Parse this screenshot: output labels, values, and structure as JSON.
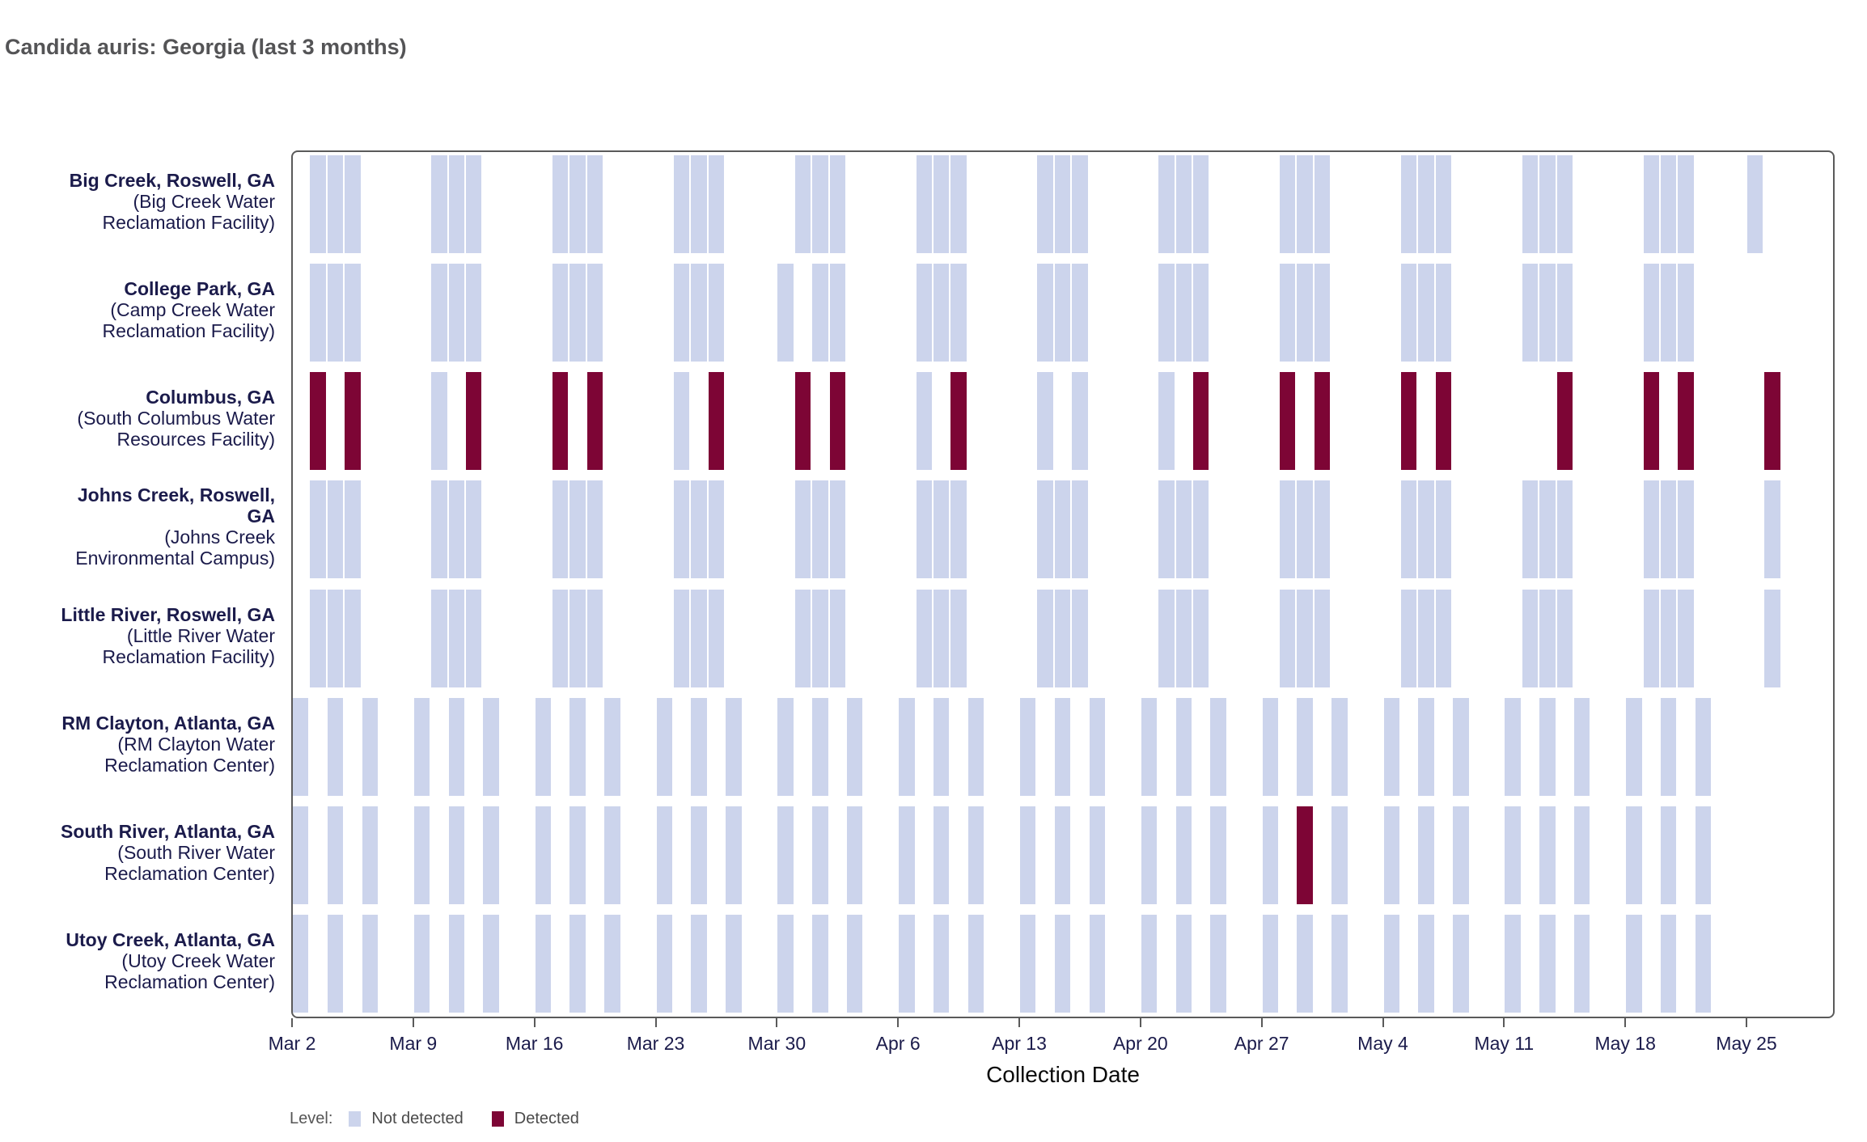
{
  "title": "Candida auris: Georgia (last 3 months)",
  "legend": {
    "label": "Level:",
    "items": [
      {
        "name": "Not detected",
        "color": "#ccd4ec"
      },
      {
        "name": "Detected",
        "color": "#7d0535"
      }
    ]
  },
  "colors": {
    "not_detected": "#ccd4ec",
    "detected": "#7d0535",
    "axis": "#5a5a5a",
    "label_navy": "#1b1b4b",
    "title_gray": "#545456"
  },
  "chart_data": {
    "type": "heatmap",
    "subtype": "detection-status-timeline",
    "xlabel": "Collection Date",
    "x_start_date": "Mar 2",
    "x_end_date": "May 26",
    "x_ticks": [
      {
        "day": 0,
        "label": "Mar 2"
      },
      {
        "day": 7,
        "label": "Mar 9"
      },
      {
        "day": 14,
        "label": "Mar 16"
      },
      {
        "day": 21,
        "label": "Mar 23"
      },
      {
        "day": 28,
        "label": "Mar 30"
      },
      {
        "day": 35,
        "label": "Apr 6"
      },
      {
        "day": 42,
        "label": "Apr 13"
      },
      {
        "day": 49,
        "label": "Apr 20"
      },
      {
        "day": 56,
        "label": "Apr 27"
      },
      {
        "day": 63,
        "label": "May 4"
      },
      {
        "day": 70,
        "label": "May 11"
      },
      {
        "day": 77,
        "label": "May 18"
      },
      {
        "day": 84,
        "label": "May 25"
      }
    ],
    "legend_position": "bottom-left",
    "grid": false,
    "rows": [
      {
        "city_lines": [
          "Big Creek, Roswell, GA"
        ],
        "facility_lines": [
          "(Big Creek Water",
          "Reclamation Facility)"
        ],
        "not_detected_days": [
          1,
          2,
          3,
          8,
          9,
          10,
          15,
          16,
          17,
          22,
          23,
          24,
          29,
          30,
          31,
          36,
          37,
          38,
          43,
          44,
          45,
          50,
          51,
          52,
          57,
          58,
          59,
          64,
          65,
          66,
          71,
          72,
          73,
          78,
          79,
          80,
          84
        ],
        "detected_days": []
      },
      {
        "city_lines": [
          "College Park, GA"
        ],
        "facility_lines": [
          "(Camp Creek Water",
          "Reclamation Facility)"
        ],
        "not_detected_days": [
          1,
          2,
          3,
          8,
          9,
          10,
          15,
          16,
          17,
          22,
          23,
          24,
          28,
          30,
          31,
          36,
          37,
          38,
          43,
          44,
          45,
          50,
          51,
          52,
          57,
          58,
          59,
          64,
          65,
          66,
          71,
          72,
          73,
          78,
          79,
          80
        ],
        "detected_days": []
      },
      {
        "city_lines": [
          "Columbus, GA"
        ],
        "facility_lines": [
          "(South Columbus Water",
          "Resources Facility)"
        ],
        "not_detected_days": [
          8,
          22,
          36,
          43,
          45,
          50
        ],
        "detected_days": [
          1,
          3,
          10,
          15,
          17,
          24,
          29,
          31,
          38,
          52,
          57,
          59,
          64,
          66,
          73,
          78,
          80,
          85
        ]
      },
      {
        "city_lines": [
          "Johns Creek, Roswell,",
          "GA"
        ],
        "facility_lines": [
          "(Johns Creek",
          "Environmental Campus)"
        ],
        "not_detected_days": [
          1,
          2,
          3,
          8,
          9,
          10,
          15,
          16,
          17,
          22,
          23,
          24,
          29,
          30,
          31,
          36,
          37,
          38,
          43,
          44,
          45,
          50,
          51,
          52,
          57,
          58,
          59,
          64,
          65,
          66,
          71,
          72,
          73,
          78,
          79,
          80,
          85
        ],
        "detected_days": []
      },
      {
        "city_lines": [
          "Little River, Roswell, GA"
        ],
        "facility_lines": [
          "(Little River Water",
          "Reclamation Facility)"
        ],
        "not_detected_days": [
          1,
          2,
          3,
          8,
          9,
          10,
          15,
          16,
          17,
          22,
          23,
          24,
          29,
          30,
          31,
          36,
          37,
          38,
          43,
          44,
          45,
          50,
          51,
          52,
          57,
          58,
          59,
          64,
          65,
          66,
          71,
          72,
          73,
          78,
          79,
          80,
          85
        ],
        "detected_days": []
      },
      {
        "city_lines": [
          "RM Clayton, Atlanta, GA"
        ],
        "facility_lines": [
          "(RM Clayton Water",
          "Reclamation Center)"
        ],
        "not_detected_days": [
          0,
          2,
          4,
          7,
          9,
          11,
          14,
          16,
          18,
          21,
          23,
          25,
          28,
          30,
          32,
          35,
          37,
          39,
          42,
          44,
          46,
          49,
          51,
          53,
          56,
          58,
          60,
          63,
          65,
          67,
          70,
          72,
          74,
          77,
          79,
          81
        ],
        "detected_days": []
      },
      {
        "city_lines": [
          "South River, Atlanta, GA"
        ],
        "facility_lines": [
          "(South River Water",
          "Reclamation Center)"
        ],
        "not_detected_days": [
          0,
          2,
          4,
          7,
          9,
          11,
          14,
          16,
          18,
          21,
          23,
          25,
          28,
          30,
          32,
          35,
          37,
          39,
          42,
          44,
          46,
          49,
          51,
          53,
          56,
          60,
          63,
          65,
          67,
          70,
          72,
          74,
          77,
          79,
          81
        ],
        "detected_days": [
          58
        ]
      },
      {
        "city_lines": [
          "Utoy Creek, Atlanta, GA"
        ],
        "facility_lines": [
          "(Utoy Creek Water",
          "Reclamation Center)"
        ],
        "not_detected_days": [
          0,
          2,
          4,
          7,
          9,
          11,
          14,
          16,
          18,
          21,
          23,
          25,
          28,
          30,
          32,
          35,
          37,
          39,
          42,
          44,
          46,
          49,
          51,
          53,
          56,
          58,
          60,
          63,
          65,
          67,
          70,
          72,
          74,
          77,
          79,
          81
        ],
        "detected_days": []
      }
    ]
  }
}
